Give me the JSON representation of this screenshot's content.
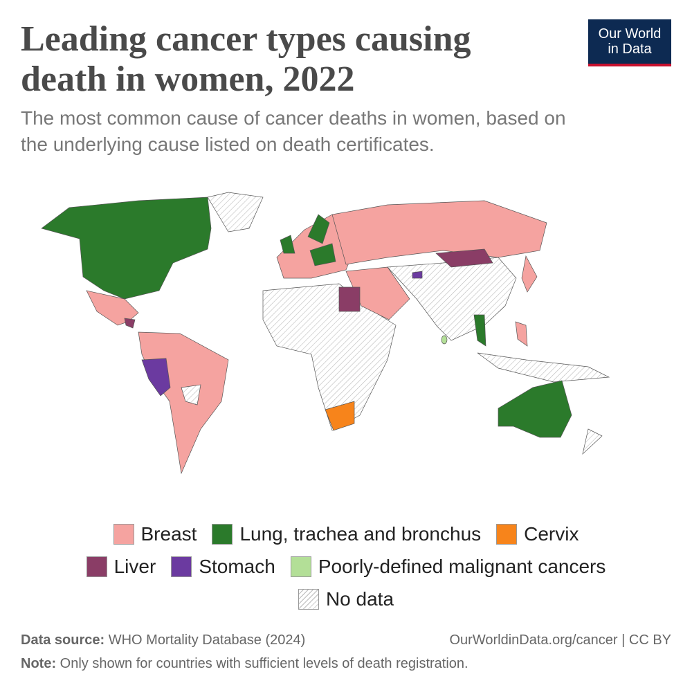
{
  "header": {
    "title_lines": [
      "Leading cancer types causing",
      "death in women, 2022"
    ],
    "subtitle_lines": [
      "The most common cause of cancer deaths in women, based on",
      "the underlying cause listed on death certificates."
    ]
  },
  "logo": {
    "lines": [
      "Our World",
      "in Data"
    ]
  },
  "legend": {
    "items": [
      {
        "label": "Breast",
        "color": "#f5a3a0"
      },
      {
        "label": "Lung, trachea and bronchus",
        "color": "#2b7a2b"
      },
      {
        "label": "Cervix",
        "color": "#f7841b"
      },
      {
        "label": "Liver",
        "color": "#8a3d66"
      },
      {
        "label": "Stomach",
        "color": "#6b3aa0"
      },
      {
        "label": "Poorly-defined malignant cancers",
        "color": "#b3df97"
      },
      {
        "label": "No data"
      }
    ]
  },
  "footer": {
    "source_label": "Data source:",
    "source": "WHO Mortality Database (2024)",
    "url": "OurWorldinData.org/cancer | CC BY",
    "note_label": "Note:",
    "note": "Only shown for countries with sufficient levels of death registration."
  }
}
